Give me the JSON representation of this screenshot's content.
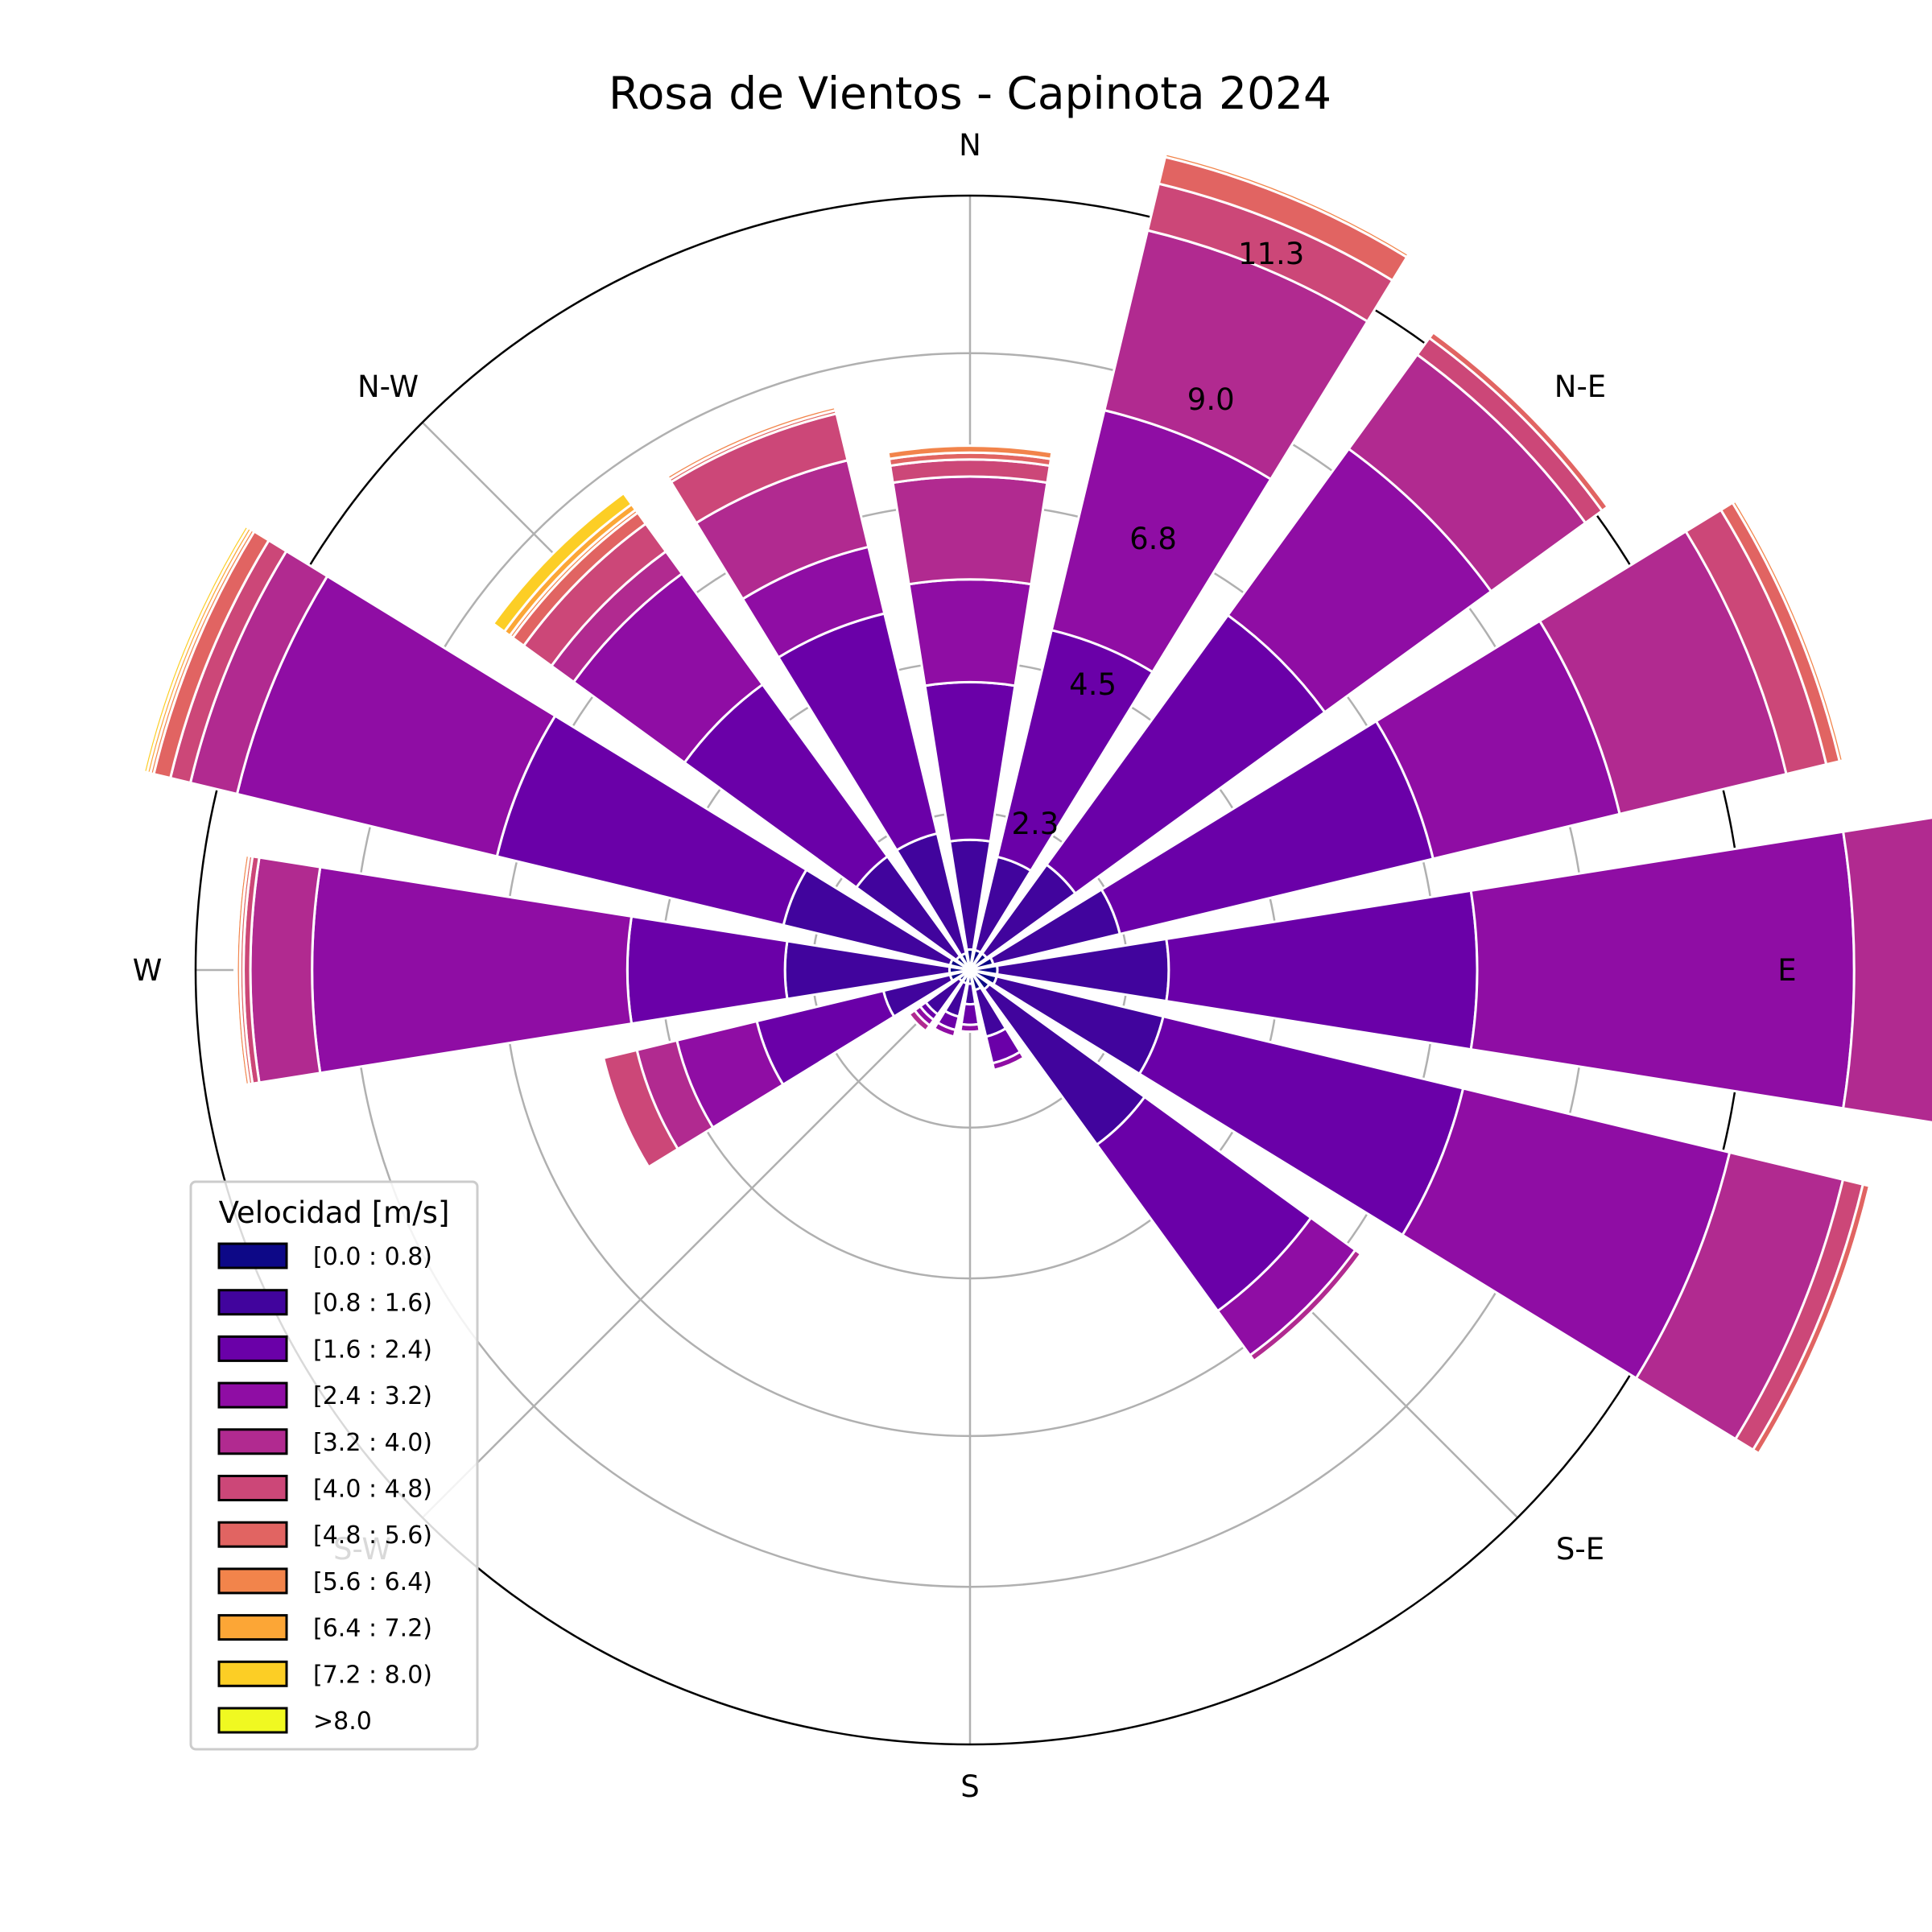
{
  "chart_data": {
    "type": "windrose",
    "title": "Rosa de Vientos - Capinota 2024",
    "direction_labels": [
      "N",
      "N-E",
      "E",
      "S-E",
      "S",
      "S-W",
      "W",
      "N-W"
    ],
    "radial_ticks": [
      2.3,
      4.5,
      6.8,
      9.0,
      11.3
    ],
    "rmax": 11.3,
    "sectors": 16,
    "sector_directions": [
      "N",
      "NNE",
      "NE",
      "ENE",
      "E",
      "ESE",
      "SE",
      "SSE",
      "S",
      "SSW",
      "SW",
      "WSW",
      "W",
      "WNW",
      "NW",
      "NNW"
    ],
    "legend": {
      "title": "Velocidad [m/s]",
      "placement": "lower-left",
      "bins": [
        "[0.0 : 0.8)",
        "[0.8 : 1.6)",
        "[1.6 : 2.4)",
        "[2.4 : 3.2)",
        "[3.2 : 4.0)",
        "[4.0 : 4.8)",
        "[4.8 : 5.6)",
        "[5.6 : 6.4)",
        "[6.4 : 7.2)",
        "[7.2 : 8.0)",
        ">8.0"
      ],
      "colors": [
        "#0d0887",
        "#41049d",
        "#6a00a8",
        "#8f0da4",
        "#b12a90",
        "#cc4778",
        "#e16462",
        "#f2844b",
        "#fca636",
        "#fcce25",
        "#f0f921"
      ]
    },
    "series": [
      {
        "bin": "[0.0 : 0.8)",
        "values": [
          0.3,
          0.3,
          0.3,
          0.35,
          0.4,
          0.4,
          0.35,
          0.3,
          0.2,
          0.2,
          0.2,
          0.3,
          0.3,
          0.3,
          0.25,
          0.25
        ]
      },
      {
        "bin": "[0.8 : 1.6)",
        "values": [
          1.6,
          1.4,
          1.6,
          1.9,
          2.5,
          2.5,
          2.8,
          0.7,
          0.3,
          0.5,
          0.6,
          1.0,
          2.4,
          2.5,
          1.8,
          1.8
        ]
      },
      {
        "bin": "[1.6 : 2.4)",
        "values": [
          2.3,
          3.4,
          4.5,
          4.7,
          4.5,
          4.5,
          3.0,
          0.4,
          0.3,
          0.2,
          0.1,
          1.9,
          2.3,
          4.3,
          3.1,
          3.3
        ]
      },
      {
        "bin": "[2.4 : 3.2)",
        "values": [
          1.5,
          3.3,
          3.0,
          2.8,
          5.5,
          4.0,
          0.8,
          0.1,
          0.1,
          0.1,
          0.1,
          1.2,
          4.6,
          3.9,
          2.0,
          1.0
        ]
      },
      {
        "bin": "[3.2 : 4.0)",
        "values": [
          1.5,
          2.7,
          1.7,
          2.5,
          2.5,
          1.7,
          0.1,
          0.0,
          0.0,
          0.0,
          0.1,
          0.6,
          0.9,
          0.7,
          0.4,
          1.3
        ]
      },
      {
        "bin": "[4.0 : 4.8)",
        "values": [
          0.25,
          0.7,
          0.3,
          0.6,
          1.2,
          0.3,
          0.0,
          0.0,
          0.0,
          0.0,
          0.0,
          0.5,
          0.1,
          0.3,
          0.5,
          0.7
        ]
      },
      {
        "bin": "[4.8 : 5.6)",
        "values": [
          0.1,
          0.4,
          0.1,
          0.2,
          0.2,
          0.1,
          0.0,
          0.0,
          0.0,
          0.0,
          0.0,
          0.0,
          0.05,
          0.25,
          0.2,
          0.05
        ]
      },
      {
        "bin": "[5.6 : 6.4)",
        "values": [
          0.1,
          0.05,
          0.0,
          0.05,
          0.05,
          0.03,
          0.0,
          0.0,
          0.0,
          0.0,
          0.0,
          0.0,
          0.05,
          0.05,
          0.05,
          0.05
        ]
      },
      {
        "bin": "[6.4 : 7.2)",
        "values": [
          0.0,
          0.0,
          0.0,
          0.0,
          0.0,
          0.0,
          0.0,
          0.0,
          0.0,
          0.0,
          0.0,
          0.0,
          0.03,
          0.05,
          0.1,
          0.0
        ]
      },
      {
        "bin": "[7.2 : 8.0)",
        "values": [
          0.0,
          0.0,
          0.0,
          0.0,
          0.0,
          0.0,
          0.0,
          0.0,
          0.0,
          0.0,
          0.0,
          0.0,
          0.0,
          0.05,
          0.2,
          0.0
        ]
      },
      {
        "bin": ">8.0",
        "values": [
          0.0,
          0.0,
          0.0,
          0.0,
          0.0,
          0.0,
          0.0,
          0.0,
          0.0,
          0.0,
          0.0,
          0.0,
          0.0,
          0.03,
          0.0,
          0.0
        ]
      }
    ]
  }
}
